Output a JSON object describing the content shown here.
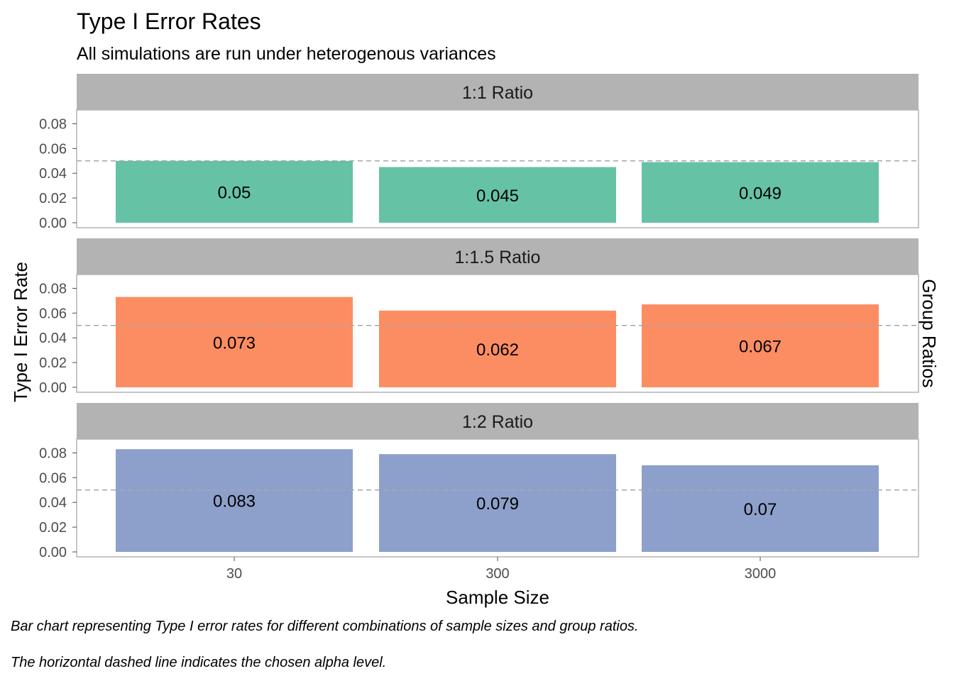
{
  "chart_data": {
    "type": "bar",
    "title": "Type I Error Rates",
    "subtitle": "All simulations are run under heterogenous variances",
    "xlabel": "Sample Size",
    "ylabel": "Type I Error Rate",
    "facet_label": "Group Ratios",
    "categories": [
      "30",
      "300",
      "3000"
    ],
    "ylim": [
      0,
      0.09
    ],
    "yticks": [
      "0.00",
      "0.02",
      "0.04",
      "0.06",
      "0.08"
    ],
    "ytick_values": [
      0,
      0.02,
      0.04,
      0.06,
      0.08
    ],
    "alpha_line": 0.05,
    "facets": [
      {
        "name": "1:1 Ratio",
        "color": "#66C2A5",
        "values": [
          0.05,
          0.045,
          0.049
        ],
        "labels": [
          "0.05",
          "0.045",
          "0.049"
        ]
      },
      {
        "name": "1:1.5 Ratio",
        "color": "#FC8D62",
        "values": [
          0.073,
          0.062,
          0.067
        ],
        "labels": [
          "0.073",
          "0.062",
          "0.067"
        ]
      },
      {
        "name": "1:2 Ratio",
        "color": "#8DA0CB",
        "values": [
          0.083,
          0.079,
          0.07
        ],
        "labels": [
          "0.083",
          "0.079",
          "0.07"
        ]
      }
    ],
    "captions": [
      "Bar chart representing Type I error rates for different combinations of sample sizes and group ratios.",
      "The horizontal dashed line indicates the chosen alpha level."
    ],
    "grid": false
  }
}
